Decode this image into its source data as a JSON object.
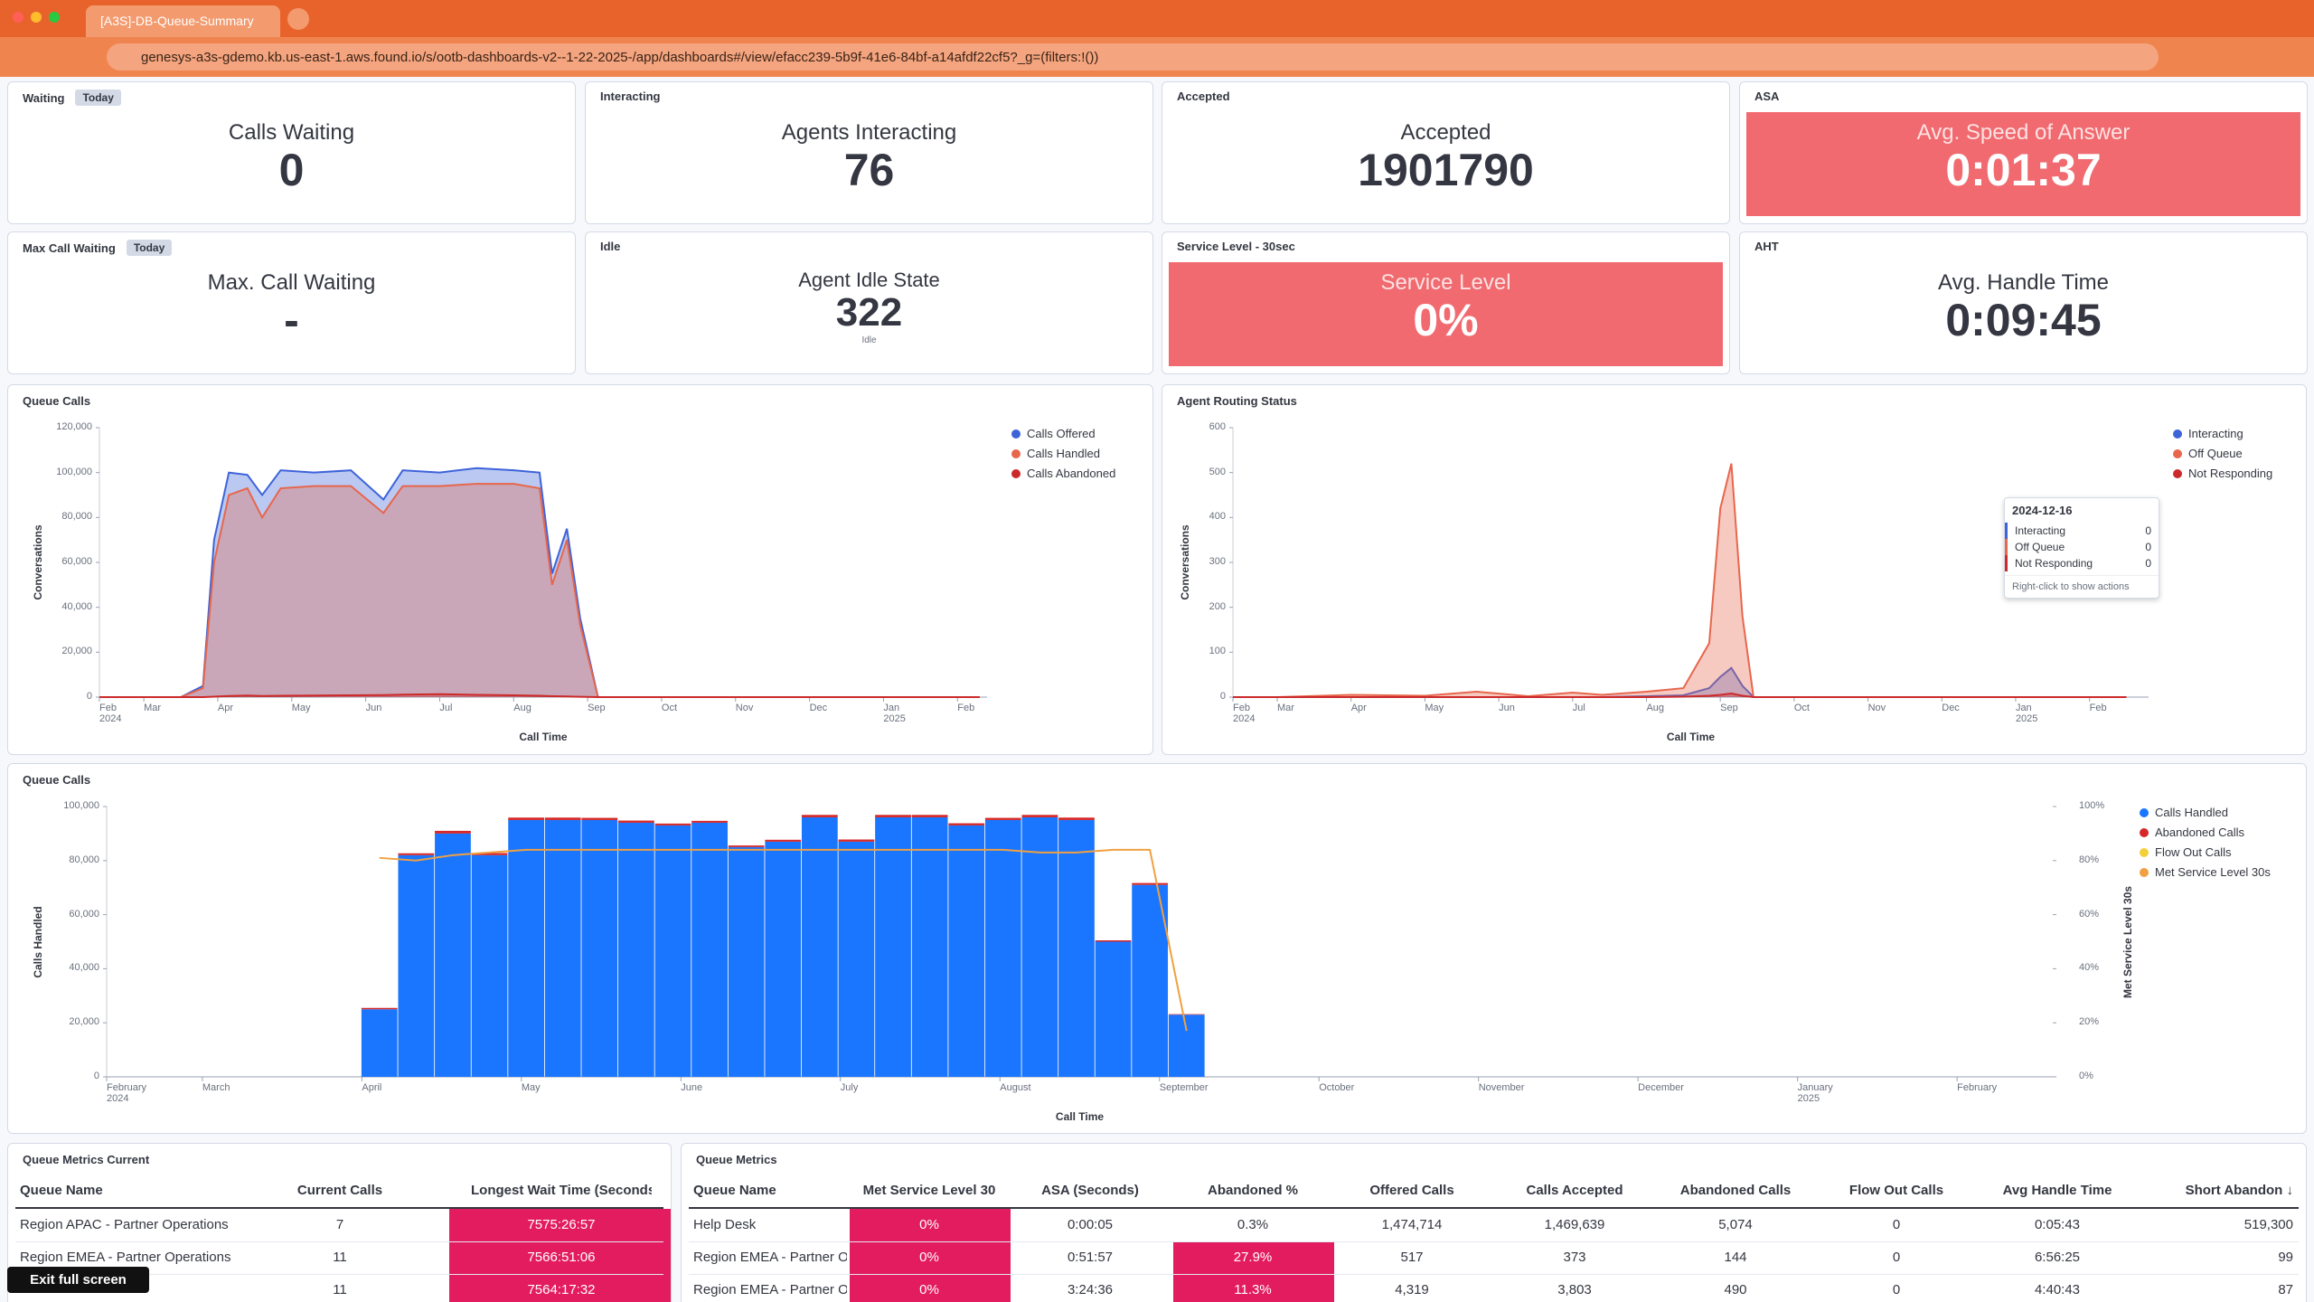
{
  "browser": {
    "tab_title": "[A3S]-DB-Queue-Summary-",
    "url": "genesys-a3s-gdemo.kb.us-east-1.aws.found.io/s/ootb-dashboards-v2--1-22-2025-/app/dashboards#/view/efacc239-5b9f-41e6-84bf-a14afdf22cf5?_g=(filters:!())",
    "button": "Exit full screen"
  },
  "kpis": [
    {
      "panel": "Waiting",
      "badge": "Today",
      "label": "Calls Waiting",
      "value": 0
    },
    {
      "panel": "Interacting",
      "label": "Agents Interacting",
      "value": 76
    },
    {
      "panel": "Accepted",
      "label": "Accepted",
      "value": 1901790
    },
    {
      "panel": "ASA",
      "label": "Avg. Speed of Answer",
      "value": "0:01:37",
      "background": "#f06a70"
    },
    {
      "panel": "Max Call Waiting",
      "badge": "Today",
      "label": "Max. Call Waiting",
      "value": "-"
    },
    {
      "panel": "Idle",
      "label": "Agent Idle State",
      "value": 322,
      "sublabel": "Idle"
    },
    {
      "panel": "Service Level - 30sec",
      "label": "Service Level",
      "value": "0%",
      "background": "#f06a70"
    },
    {
      "panel": "AHT",
      "label": "Avg. Handle Time",
      "value": "0:09:45"
    }
  ],
  "chart_data": [
    {
      "type": "area",
      "title": "Queue Calls",
      "x_label": "Call Time",
      "y_label": "Conversations",
      "legend": "right",
      "x": [
        0.4,
        1.5,
        1.8,
        1.95,
        2.15,
        2.4,
        2.6,
        2.85,
        3.3,
        3.8,
        4.24,
        4.5,
        5.0,
        5.5,
        6.0,
        6.35,
        6.52,
        6.72,
        6.9,
        7.14,
        8,
        9,
        10,
        11,
        12.3
      ],
      "series": [
        {
          "name": "Calls Offered",
          "color": "#3d63d9",
          "values": [
            0,
            0,
            5000,
            70000,
            100000,
            99000,
            90000,
            101000,
            100000,
            101000,
            88000,
            101000,
            100000,
            102000,
            101000,
            100000,
            55000,
            75000,
            35000,
            0,
            0,
            0,
            0,
            0,
            0
          ]
        },
        {
          "name": "Calls Handled",
          "color": "#e7664c",
          "values": [
            0,
            0,
            4000,
            60000,
            90000,
            93000,
            80000,
            93000,
            94000,
            94000,
            82000,
            94000,
            94000,
            95000,
            95000,
            93000,
            50000,
            70000,
            32000,
            0,
            0,
            0,
            0,
            0,
            0
          ]
        },
        {
          "name": "Calls Abandoned",
          "color": "#cc2a2a",
          "values": [
            0,
            0,
            0,
            200,
            500,
            700,
            500,
            600,
            700,
            800,
            900,
            1100,
            1300,
            1000,
            800,
            600,
            400,
            300,
            150,
            0,
            0,
            0,
            0,
            0,
            0
          ]
        }
      ],
      "xlim": [
        0.4,
        12.4
      ],
      "xticks": [
        {
          "value": 0.4,
          "label": "Feb\n2024"
        },
        {
          "value": 1,
          "label": "Mar"
        },
        {
          "value": 2,
          "label": "Apr"
        },
        {
          "value": 3,
          "label": "May"
        },
        {
          "value": 4,
          "label": "Jun"
        },
        {
          "value": 5,
          "label": "Jul"
        },
        {
          "value": 6,
          "label": "Aug"
        },
        {
          "value": 7,
          "label": "Sep"
        },
        {
          "value": 8,
          "label": "Oct"
        },
        {
          "value": 9,
          "label": "Nov"
        },
        {
          "value": 10,
          "label": "Dec"
        },
        {
          "value": 11,
          "label": "Jan\n2025"
        },
        {
          "value": 12,
          "label": "Feb"
        }
      ],
      "ylim": [
        0,
        120000
      ],
      "yticks": [
        0,
        {
          "value": 20000,
          "label": "20,000"
        },
        {
          "value": 40000,
          "label": "40,000"
        },
        {
          "value": 60000,
          "label": "60,000"
        },
        {
          "value": 80000,
          "label": "80,000"
        },
        {
          "value": 100000,
          "label": "100,000"
        },
        {
          "value": 120000,
          "label": "120,000"
        }
      ]
    },
    {
      "type": "area",
      "title": "Agent Routing Status",
      "x_label": "Call Time",
      "y_label": "Conversations",
      "legend": "right",
      "x": [
        0.4,
        1,
        2,
        3,
        3.7,
        4.4,
        5,
        5.4,
        6,
        6.5,
        6.85,
        7.0,
        7.15,
        7.3,
        7.45,
        8,
        9,
        10,
        11,
        12.5
      ],
      "series": [
        {
          "name": "Interacting",
          "color": "#3d63d9",
          "values": [
            0,
            0,
            0,
            0,
            0,
            0,
            0,
            0,
            2,
            4,
            20,
            45,
            65,
            25,
            0,
            0,
            0,
            0,
            0,
            0
          ]
        },
        {
          "name": "Off Queue",
          "color": "#e7664c",
          "values": [
            0,
            0,
            5,
            3,
            12,
            2,
            10,
            5,
            12,
            20,
            120,
            420,
            520,
            180,
            0,
            0,
            0,
            0,
            0,
            0
          ]
        },
        {
          "name": "Not Responding",
          "color": "#cc2a2a",
          "values": [
            0,
            0,
            0,
            0,
            0,
            0,
            0,
            0,
            0,
            1,
            3,
            5,
            8,
            3,
            0,
            0,
            0,
            0,
            0,
            0
          ]
        }
      ],
      "xlim": [
        0.4,
        12.8
      ],
      "xticks": [
        {
          "value": 0.4,
          "label": "Feb\n2024"
        },
        {
          "value": 1,
          "label": "Mar"
        },
        {
          "value": 2,
          "label": "Apr"
        },
        {
          "value": 3,
          "label": "May"
        },
        {
          "value": 4,
          "label": "Jun"
        },
        {
          "value": 5,
          "label": "Jul"
        },
        {
          "value": 6,
          "label": "Aug"
        },
        {
          "value": 7,
          "label": "Sep"
        },
        {
          "value": 8,
          "label": "Oct"
        },
        {
          "value": 9,
          "label": "Nov"
        },
        {
          "value": 10,
          "label": "Dec"
        },
        {
          "value": 11,
          "label": "Jan\n2025"
        },
        {
          "value": 12,
          "label": "Feb"
        }
      ],
      "ylim": [
        0,
        600
      ],
      "yticks": [
        0,
        100,
        200,
        300,
        400,
        500,
        600
      ],
      "tooltip": {
        "date": "2024-12-16",
        "rows": [
          {
            "name": "Interacting",
            "value": 0,
            "color": "#3d63d9"
          },
          {
            "name": "Off Queue",
            "value": 0,
            "color": "#e7664c"
          },
          {
            "name": "Not Responding",
            "value": 0,
            "color": "#cc2a2a"
          }
        ],
        "hint": "Right-click to show actions"
      }
    },
    {
      "type": "bar",
      "title": "Queue Calls",
      "x_label": "Call Time",
      "y_label": "Calls Handled",
      "y2_label": "Met Service Level 30s",
      "legend": "right",
      "bar_width": 0.231,
      "x": [
        2.11,
        2.34,
        2.57,
        2.8,
        3.03,
        3.26,
        3.49,
        3.72,
        3.95,
        4.18,
        4.41,
        4.64,
        4.87,
        5.1,
        5.33,
        5.56,
        5.79,
        6.02,
        6.25,
        6.48,
        6.71,
        6.94,
        7.17
      ],
      "series": [
        {
          "name": "Calls Handled",
          "color": "#1a76ff",
          "values": [
            25000,
            82000,
            90000,
            82000,
            95000,
            95000,
            95000,
            94000,
            93000,
            94000,
            85000,
            87000,
            96000,
            87000,
            96000,
            96000,
            93000,
            95000,
            96000,
            95000,
            50000,
            71000,
            23000
          ]
        },
        {
          "name": "Abandoned Calls",
          "color": "#d62828",
          "values": [
            500,
            700,
            1000,
            800,
            900,
            900,
            800,
            800,
            700,
            700,
            600,
            700,
            900,
            800,
            900,
            900,
            800,
            800,
            900,
            900,
            500,
            700,
            200
          ]
        },
        {
          "name": "Flow Out Calls",
          "color": "#f2d03b",
          "values": [
            0,
            0,
            0,
            0,
            0,
            0,
            0,
            0,
            0,
            0,
            0,
            0,
            0,
            0,
            0,
            0,
            0,
            0,
            0,
            0,
            0,
            0,
            0
          ]
        },
        {
          "name": "Met Service Level 30s",
          "color": "#f0a040",
          "type": "line",
          "axis": "y2",
          "values": [
            81,
            80,
            82,
            83,
            84,
            84,
            84,
            84,
            84,
            84,
            84,
            84,
            84,
            84,
            84,
            84,
            84,
            84,
            83,
            83,
            84,
            84,
            17
          ]
        }
      ],
      "xlim": [
        0.4,
        12.6
      ],
      "xticks": [
        {
          "value": 0.4,
          "label": "February\n2024"
        },
        {
          "value": 1,
          "label": "March"
        },
        {
          "value": 2,
          "label": "April"
        },
        {
          "value": 3,
          "label": "May"
        },
        {
          "value": 4,
          "label": "June"
        },
        {
          "value": 5,
          "label": "July"
        },
        {
          "value": 6,
          "label": "August"
        },
        {
          "value": 7,
          "label": "September"
        },
        {
          "value": 8,
          "label": "October"
        },
        {
          "value": 9,
          "label": "November"
        },
        {
          "value": 10,
          "label": "December"
        },
        {
          "value": 11,
          "label": "January\n2025"
        },
        {
          "value": 12,
          "label": "February"
        }
      ],
      "ylim": [
        0,
        100000
      ],
      "yticks": [
        0,
        {
          "value": 20000,
          "label": "20,000"
        },
        {
          "value": 40000,
          "label": "40,000"
        },
        {
          "value": 60000,
          "label": "60,000"
        },
        {
          "value": 80000,
          "label": "80,000"
        },
        {
          "value": 100000,
          "label": "100,000"
        }
      ],
      "y2lim": [
        0,
        100
      ],
      "y2ticks": [
        {
          "value": 0,
          "label": "0%"
        },
        {
          "value": 20,
          "label": "20%"
        },
        {
          "value": 40,
          "label": "40%"
        },
        {
          "value": 60,
          "label": "60%"
        },
        {
          "value": 80,
          "label": "80%"
        },
        {
          "value": 100,
          "label": "100%"
        }
      ]
    }
  ],
  "tables": [
    {
      "title": "Queue Metrics Current",
      "columns": [
        "Queue Name",
        "Current Calls",
        "Longest Wait Time (Seconds)"
      ],
      "rows": [
        [
          "Region APAC - Partner Operations",
          7,
          "7575:26:57"
        ],
        [
          "Region EMEA - Partner Operations",
          11,
          "7566:51:06"
        ],
        [
          null,
          11,
          "7564:17:32"
        ]
      ]
    },
    {
      "title": "Queue Metrics",
      "columns": [
        "Queue Name",
        "Met Service Level 30",
        "ASA (Seconds)",
        "Abandoned %",
        "Offered Calls",
        "Calls Accepted",
        "Abandoned Calls",
        "Flow Out Calls",
        "Avg Handle Time",
        "Short Abandon ↓"
      ],
      "rows": [
        [
          "Help Desk",
          "0%",
          "0:00:05",
          "0.3%",
          "1,474,714",
          "1,469,639",
          "5,074",
          0,
          "0:05:43",
          "519,300"
        ],
        [
          "Region EMEA - Partner Op",
          "0%",
          "0:51:57",
          "27.9%",
          "517",
          "373",
          "144",
          0,
          "6:56:25",
          "99"
        ],
        [
          "Region EMEA - Partner Op",
          "0%",
          "3:24:36",
          "11.3%",
          "4,319",
          "3,803",
          "490",
          0,
          "4:40:43",
          "87"
        ]
      ]
    }
  ]
}
